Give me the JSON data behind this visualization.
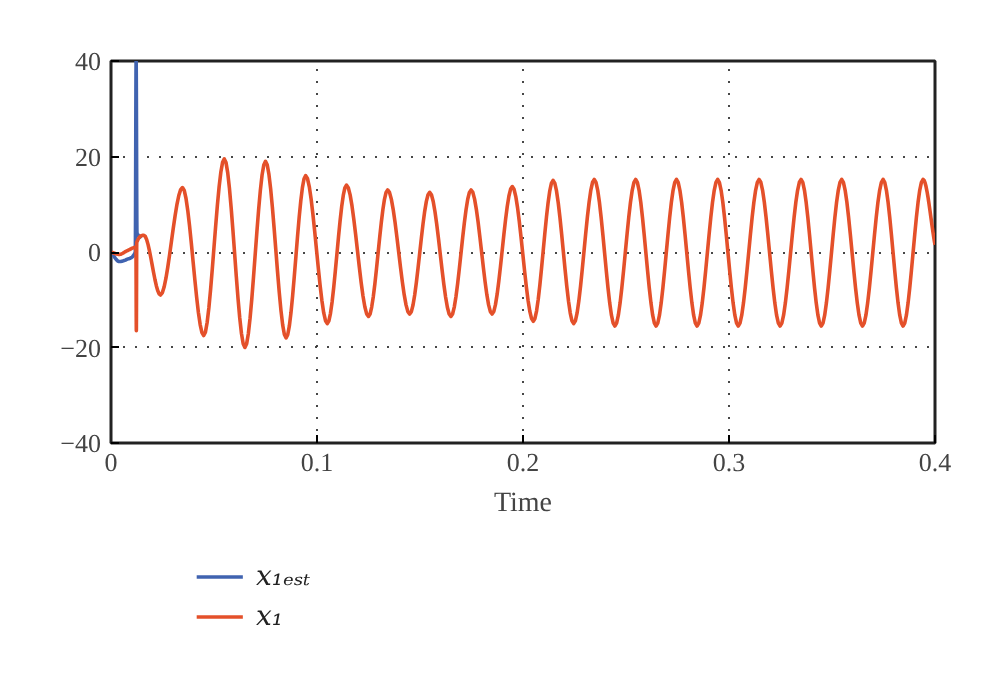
{
  "chart_data": {
    "type": "line",
    "xlabel": "Time",
    "xlim": [
      0,
      0.4
    ],
    "ylim": [
      -40,
      40
    ],
    "xticks": [
      0,
      0.1,
      0.2,
      0.3,
      0.4
    ],
    "yticks": [
      -40,
      -20,
      0,
      20,
      40
    ],
    "grid": true,
    "legend": "bottom left",
    "line_style": "solid",
    "series": [
      {
        "name": "x₁ₑₛₜ",
        "color": "#4063b0",
        "x": [
          0,
          0.004,
          0.008,
          0.0118,
          0.0122,
          0.0126,
          0.015
        ],
        "values": [
          0,
          -2,
          -1.5,
          0,
          40,
          4,
          3
        ]
      },
      {
        "name": "x₁",
        "color": "#e4502a",
        "x": [
          0,
          0.004,
          0.008,
          0.0121,
          0.0123,
          0.0125,
          0.016,
          0.024,
          0.0347,
          0.045,
          0.055,
          0.065,
          0.075,
          0.085,
          0.0945,
          0.105,
          0.1143,
          0.125,
          0.1343,
          0.145,
          0.1547,
          0.165,
          0.1748,
          0.185,
          0.1948,
          0.205,
          0.2146,
          0.2246,
          0.2346,
          0.2446,
          0.2547,
          0.2646,
          0.2745,
          0.2845,
          0.2945,
          0.3045,
          0.3146,
          0.3248,
          0.335,
          0.3448,
          0.3547,
          0.3648,
          0.3748,
          0.3845,
          0.3942,
          0.4
        ],
        "values": [
          0,
          -0.5,
          0.3,
          1,
          -16.5,
          2,
          3.5,
          -9,
          13.5,
          -17.5,
          19.5,
          -20,
          19,
          -18,
          16,
          -15,
          14,
          -13.5,
          13,
          -13,
          12.5,
          -13.5,
          13,
          -13,
          13.7,
          -14.5,
          15,
          -15,
          15.2,
          -15.5,
          15.2,
          -15.5,
          15.2,
          -15.5,
          15.2,
          -15.5,
          15.2,
          -15.5,
          15.2,
          -15.5,
          15.2,
          -15.5,
          15.2,
          -15.5,
          15.2,
          1.5
        ]
      }
    ]
  }
}
